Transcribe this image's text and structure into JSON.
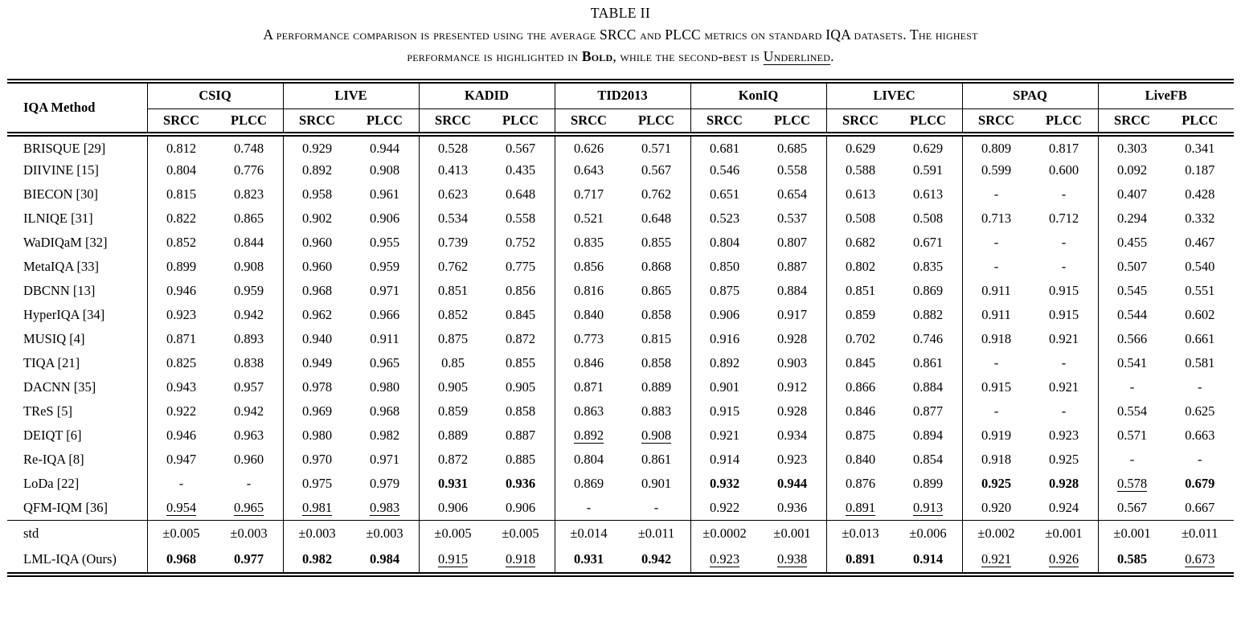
{
  "title": "TABLE II",
  "caption": {
    "line1": "A performance comparison is presented using the average SRCC and PLCC metrics on standard IQA datasets. The highest",
    "line2_pre": "performance is highlighted in ",
    "bold_word": "Bold",
    "line2_mid": ", while the second-best is ",
    "underlined_word": "Underlined",
    "line2_end": "."
  },
  "colors": {
    "text": "#000000",
    "background": "#ffffff"
  },
  "table": {
    "method_header": "IQA Method",
    "datasets": [
      "CSIQ",
      "LIVE",
      "KADID",
      "TID2013",
      "KonIQ",
      "LIVEC",
      "SPAQ",
      "LiveFB"
    ],
    "subheaders": [
      "SRCC",
      "PLCC"
    ],
    "format_legend": {
      "b": "bold (highest)",
      "u": "underlined (second-best)"
    },
    "rows": [
      {
        "method": "BRISQUE [29]",
        "cells": [
          "0.812",
          "0.748",
          "0.929",
          "0.944",
          "0.528",
          "0.567",
          "0.626",
          "0.571",
          "0.681",
          "0.685",
          "0.629",
          "0.629",
          "0.809",
          "0.817",
          "0.303",
          "0.341"
        ]
      },
      {
        "method": "DIIVINE [15]",
        "cells": [
          "0.804",
          "0.776",
          "0.892",
          "0.908",
          "0.413",
          "0.435",
          "0.643",
          "0.567",
          "0.546",
          "0.558",
          "0.588",
          "0.591",
          "0.599",
          "0.600",
          "0.092",
          "0.187"
        ]
      },
      {
        "method": "BIECON [30]",
        "cells": [
          "0.815",
          "0.823",
          "0.958",
          "0.961",
          "0.623",
          "0.648",
          "0.717",
          "0.762",
          "0.651",
          "0.654",
          "0.613",
          "0.613",
          "-",
          "-",
          "0.407",
          "0.428"
        ]
      },
      {
        "method": "ILNIQE [31]",
        "cells": [
          "0.822",
          "0.865",
          "0.902",
          "0.906",
          "0.534",
          "0.558",
          "0.521",
          "0.648",
          "0.523",
          "0.537",
          "0.508",
          "0.508",
          "0.713",
          "0.712",
          "0.294",
          "0.332"
        ]
      },
      {
        "method": "WaDIQaM [32]",
        "cells": [
          "0.852",
          "0.844",
          "0.960",
          "0.955",
          "0.739",
          "0.752",
          "0.835",
          "0.855",
          "0.804",
          "0.807",
          "0.682",
          "0.671",
          "-",
          "-",
          "0.455",
          "0.467"
        ]
      },
      {
        "method": "MetaIQA [33]",
        "cells": [
          "0.899",
          "0.908",
          "0.960",
          "0.959",
          "0.762",
          "0.775",
          "0.856",
          "0.868",
          "0.850",
          "0.887",
          "0.802",
          "0.835",
          "-",
          "-",
          "0.507",
          "0.540"
        ]
      },
      {
        "method": "DBCNN [13]",
        "cells": [
          "0.946",
          "0.959",
          "0.968",
          "0.971",
          "0.851",
          "0.856",
          "0.816",
          "0.865",
          "0.875",
          "0.884",
          "0.851",
          "0.869",
          "0.911",
          "0.915",
          "0.545",
          "0.551"
        ]
      },
      {
        "method": "HyperIQA [34]",
        "cells": [
          "0.923",
          "0.942",
          "0.962",
          "0.966",
          "0.852",
          "0.845",
          "0.840",
          "0.858",
          "0.906",
          "0.917",
          "0.859",
          "0.882",
          "0.911",
          "0.915",
          "0.544",
          "0.602"
        ]
      },
      {
        "method": "MUSIQ [4]",
        "cells": [
          "0.871",
          "0.893",
          "0.940",
          "0.911",
          "0.875",
          "0.872",
          "0.773",
          "0.815",
          "0.916",
          "0.928",
          "0.702",
          "0.746",
          "0.918",
          "0.921",
          "0.566",
          "0.661"
        ]
      },
      {
        "method": "TIQA [21]",
        "cells": [
          "0.825",
          "0.838",
          "0.949",
          "0.965",
          "0.85",
          "0.855",
          "0.846",
          "0.858",
          "0.892",
          "0.903",
          "0.845",
          "0.861",
          "-",
          "-",
          "0.541",
          "0.581"
        ]
      },
      {
        "method": "DACNN [35]",
        "cells": [
          "0.943",
          "0.957",
          "0.978",
          "0.980",
          "0.905",
          "0.905",
          "0.871",
          "0.889",
          "0.901",
          "0.912",
          "0.866",
          "0.884",
          "0.915",
          "0.921",
          "-",
          "-"
        ]
      },
      {
        "method": "TReS [5]",
        "cells": [
          "0.922",
          "0.942",
          "0.969",
          "0.968",
          "0.859",
          "0.858",
          "0.863",
          "0.883",
          "0.915",
          "0.928",
          "0.846",
          "0.877",
          "-",
          "-",
          "0.554",
          "0.625"
        ]
      },
      {
        "method": "DEIQT [6]",
        "cells": [
          "0.946",
          "0.963",
          "0.980",
          "0.982",
          "0.889",
          "0.887",
          "0.892|u",
          "0.908|u",
          "0.921",
          "0.934",
          "0.875",
          "0.894",
          "0.919",
          "0.923",
          "0.571",
          "0.663"
        ]
      },
      {
        "method": "Re-IQA  [8]",
        "cells": [
          "0.947",
          "0.960",
          "0.970",
          "0.971",
          "0.872",
          "0.885",
          "0.804",
          "0.861",
          "0.914",
          "0.923",
          "0.840",
          "0.854",
          "0.918",
          "0.925",
          "-",
          "-"
        ]
      },
      {
        "method": "LoDa  [22]",
        "cells": [
          "-",
          "-",
          "0.975",
          "0.979",
          "0.931|b",
          "0.936|b",
          "0.869",
          "0.901",
          "0.932|b",
          "0.944|b",
          "0.876",
          "0.899",
          "0.925|b",
          "0.928|b",
          "0.578|u",
          "0.679|b"
        ]
      },
      {
        "method": "QFM-IQM  [36]",
        "cells": [
          "0.954|u",
          "0.965|u",
          "0.981|u",
          "0.983|u",
          "0.906",
          "0.906",
          "-",
          "-",
          "0.922",
          "0.936",
          "0.891|u",
          "0.913|u",
          "0.920",
          "0.924",
          "0.567",
          "0.667"
        ]
      }
    ],
    "footer_rows": [
      {
        "method": "std",
        "cells": [
          "±0.005",
          "±0.003",
          "±0.003",
          "±0.003",
          "±0.005",
          "±0.005",
          "±0.014",
          "±0.011",
          "±0.0002",
          "±0.001",
          "±0.013",
          "±0.006",
          "±0.002",
          "±0.001",
          "±0.001",
          "±0.011"
        ]
      },
      {
        "method": "LML-IQA (Ours)",
        "cells": [
          "0.968|b",
          "0.977|b",
          "0.982|b",
          "0.984|b",
          "0.915|u",
          "0.918|u",
          "0.931|b",
          "0.942|b",
          "0.923|u",
          "0.938|u",
          "0.891|b",
          "0.914|b",
          "0.921|u",
          "0.926|u",
          "0.585|b",
          "0.673|u"
        ]
      }
    ]
  }
}
